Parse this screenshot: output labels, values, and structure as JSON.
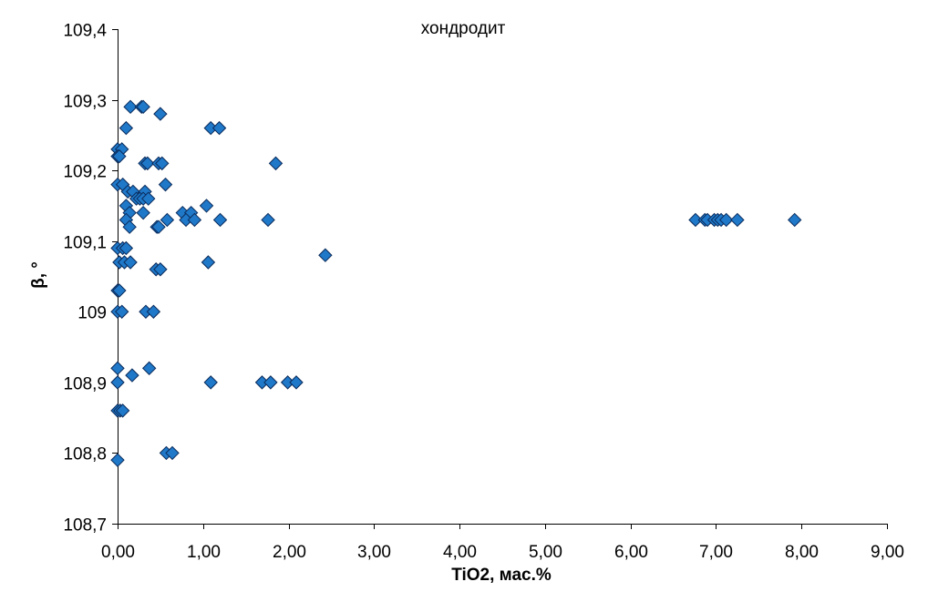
{
  "chart_data": {
    "type": "scatter",
    "title": "хондродит",
    "xlabel": "TiO2, мас.%",
    "ylabel": "β, °",
    "xlim": [
      0,
      9
    ],
    "ylim": [
      108.7,
      109.4
    ],
    "grid": false,
    "legend": "none",
    "marker": "diamond",
    "marker_color": "#1f78c8",
    "x_ticks": [
      "0,00",
      "1,00",
      "2,00",
      "3,00",
      "4,00",
      "5,00",
      "6,00",
      "7,00",
      "8,00",
      "9,00"
    ],
    "y_ticks": [
      "108,7",
      "108,8",
      "108,9",
      "109",
      "109,1",
      "109,2",
      "109,3",
      "109,4"
    ],
    "series": [
      {
        "points": [
          [
            0.15,
            109.29
          ],
          [
            0.28,
            109.29
          ],
          [
            0.3,
            109.29
          ],
          [
            0.5,
            109.28
          ],
          [
            0.1,
            109.26
          ],
          [
            1.09,
            109.26
          ],
          [
            1.19,
            109.26
          ],
          [
            0.0,
            109.23
          ],
          [
            0.05,
            109.23
          ],
          [
            0.0,
            109.22
          ],
          [
            0.02,
            109.22
          ],
          [
            0.32,
            109.21
          ],
          [
            0.35,
            109.21
          ],
          [
            0.48,
            109.21
          ],
          [
            0.52,
            109.21
          ],
          [
            1.85,
            109.21
          ],
          [
            0.0,
            109.18
          ],
          [
            0.06,
            109.18
          ],
          [
            0.56,
            109.18
          ],
          [
            0.12,
            109.17
          ],
          [
            0.18,
            109.17
          ],
          [
            0.32,
            109.17
          ],
          [
            0.22,
            109.16
          ],
          [
            0.26,
            109.16
          ],
          [
            0.3,
            109.16
          ],
          [
            0.36,
            109.16
          ],
          [
            0.1,
            109.15
          ],
          [
            1.04,
            109.15
          ],
          [
            0.14,
            109.14
          ],
          [
            0.3,
            109.14
          ],
          [
            0.76,
            109.14
          ],
          [
            0.86,
            109.14
          ],
          [
            0.1,
            109.13
          ],
          [
            0.58,
            109.13
          ],
          [
            0.8,
            109.13
          ],
          [
            0.9,
            109.13
          ],
          [
            1.2,
            109.13
          ],
          [
            1.76,
            109.13
          ],
          [
            6.76,
            109.13
          ],
          [
            6.87,
            109.13
          ],
          [
            6.9,
            109.13
          ],
          [
            6.98,
            109.13
          ],
          [
            7.02,
            109.13
          ],
          [
            7.06,
            109.13
          ],
          [
            7.12,
            109.13
          ],
          [
            7.25,
            109.13
          ],
          [
            7.92,
            109.13
          ],
          [
            0.14,
            109.12
          ],
          [
            0.46,
            109.12
          ],
          [
            0.48,
            109.12
          ],
          [
            0.0,
            109.09
          ],
          [
            0.06,
            109.09
          ],
          [
            0.1,
            109.09
          ],
          [
            2.43,
            109.08
          ],
          [
            0.02,
            109.07
          ],
          [
            0.08,
            109.07
          ],
          [
            0.15,
            109.07
          ],
          [
            1.06,
            109.07
          ],
          [
            0.45,
            109.06
          ],
          [
            0.5,
            109.06
          ],
          [
            0.0,
            109.03
          ],
          [
            0.02,
            109.03
          ],
          [
            0.0,
            109.0
          ],
          [
            0.05,
            109.0
          ],
          [
            0.33,
            109.0
          ],
          [
            0.42,
            109.0
          ],
          [
            0.0,
            108.92
          ],
          [
            0.37,
            108.92
          ],
          [
            0.17,
            108.91
          ],
          [
            0.0,
            108.9
          ],
          [
            1.09,
            108.9
          ],
          [
            1.69,
            108.9
          ],
          [
            1.79,
            108.9
          ],
          [
            1.99,
            108.9
          ],
          [
            2.09,
            108.9
          ],
          [
            0.0,
            108.86
          ],
          [
            0.03,
            108.86
          ],
          [
            0.06,
            108.86
          ],
          [
            0.57,
            108.8
          ],
          [
            0.64,
            108.8
          ],
          [
            0.0,
            108.79
          ]
        ]
      }
    ]
  }
}
